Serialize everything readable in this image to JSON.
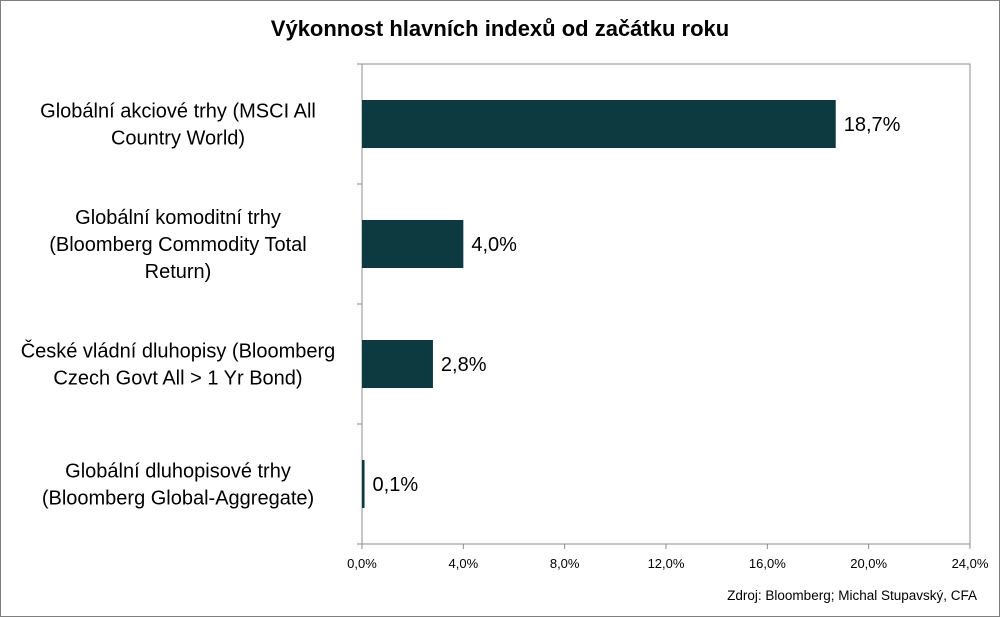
{
  "chart_data": {
    "type": "bar",
    "orientation": "horizontal",
    "title": "Výkonnost hlavních indexů od začátku roku",
    "categories": [
      [
        "Globální akciové trhy (MSCI All",
        "Country World)"
      ],
      [
        "Globální komoditní trhy",
        "(Bloomberg Commodity Total",
        "Return)"
      ],
      [
        "České vládní dluhopisy (Bloomberg",
        "Czech Govt All > 1 Yr Bond)"
      ],
      [
        "Globální dluhopisové trhy",
        "(Bloomberg Global-Aggregate)"
      ]
    ],
    "values": [
      18.7,
      4.0,
      2.8,
      0.1
    ],
    "value_labels": [
      "18,7%",
      "4,0%",
      "2,8%",
      "0,1%"
    ],
    "xlim": [
      0,
      24
    ],
    "x_ticks": [
      0,
      4,
      8,
      12,
      16,
      20,
      24
    ],
    "x_tick_labels": [
      "0,0%",
      "4,0%",
      "8,0%",
      "12,0%",
      "16,0%",
      "20,0%",
      "24,0%"
    ],
    "bar_color": "#0d3a40",
    "grid": false,
    "legend": "none",
    "source": "Zdroj: Bloomberg; Michal Stupavský, CFA"
  }
}
